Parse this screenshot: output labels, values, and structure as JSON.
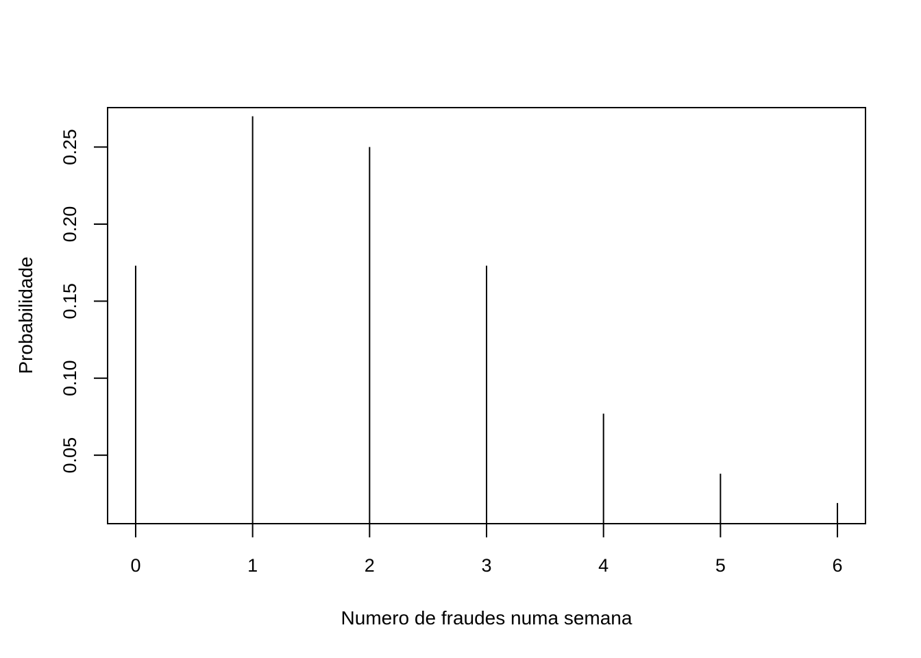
{
  "chart_data": {
    "type": "bar",
    "style": "vertical-lines",
    "title": "",
    "xlabel": "Numero de fraudes numa semana",
    "ylabel": "Probabilidade",
    "categories": [
      "0",
      "1",
      "2",
      "3",
      "4",
      "5",
      "6"
    ],
    "x": [
      0,
      1,
      2,
      3,
      4,
      5,
      6
    ],
    "values": [
      0.173,
      0.27,
      0.25,
      0.173,
      0.077,
      0.038,
      0.019
    ],
    "xlim": [
      -0.24,
      6.24
    ],
    "ylim": [
      0.0056,
      0.2756
    ],
    "yticks": [
      0.05,
      0.1,
      0.15,
      0.2,
      0.25
    ],
    "ytick_labels": [
      "0.05",
      "0.10",
      "0.15",
      "0.20",
      "0.25"
    ],
    "grid": false,
    "colors": {
      "line": "#000000",
      "background": "#ffffff"
    }
  }
}
